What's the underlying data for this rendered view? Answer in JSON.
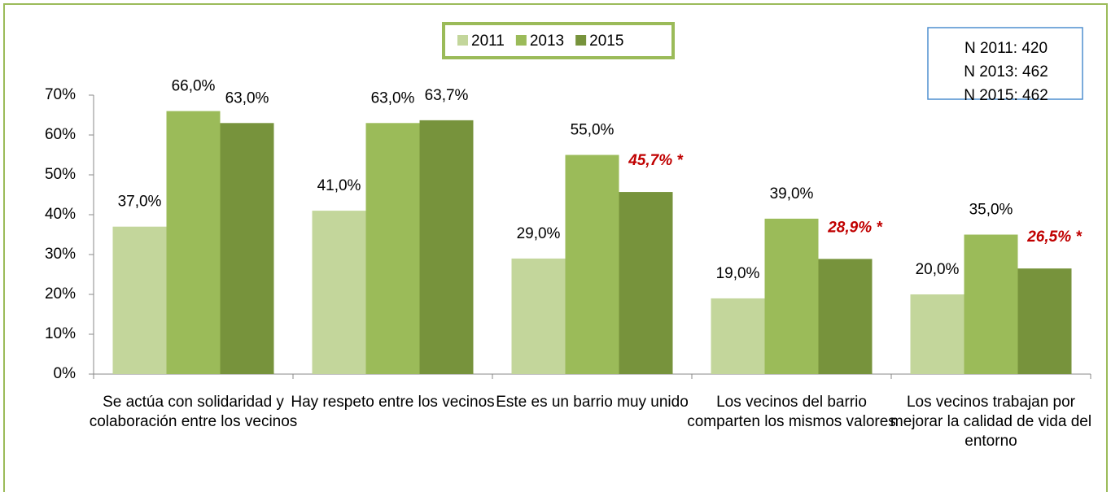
{
  "chart_data": {
    "type": "bar",
    "categories": [
      "Se actúa con solidaridad y colaboración entre los vecinos",
      "Hay respeto entre los vecinos",
      "Este es un barrio muy unido",
      "Los vecinos del barrio comparten los mismos valores",
      "Los vecinos trabajan por mejorar la calidad de vida del entorno"
    ],
    "series": [
      {
        "name": "2011",
        "color": "#c3d69b",
        "values": [
          37,
          41,
          29,
          19,
          20
        ],
        "value_labels": [
          "37,0%",
          "41,0%",
          "29,0%",
          "19,0%",
          "20,0%"
        ]
      },
      {
        "name": "2013",
        "color": "#9bbb59",
        "values": [
          66,
          63,
          55,
          39,
          35
        ],
        "value_labels": [
          "66,0%",
          "63,0%",
          "55,0%",
          "39,0%",
          "35,0%"
        ]
      },
      {
        "name": "2015",
        "color": "#77933c",
        "values": [
          63,
          63.7,
          45.7,
          28.9,
          26.5
        ],
        "value_labels": [
          "63,0%",
          "63,7%",
          "45,7% *",
          "28,9% *",
          "26,5% *"
        ],
        "highlight": [
          false,
          false,
          true,
          true,
          true
        ],
        "highlight_color": "#c00000"
      }
    ],
    "ylim": [
      0,
      70
    ],
    "yticks": [
      {
        "value": 0,
        "label": "0%"
      },
      {
        "value": 10,
        "label": "10%"
      },
      {
        "value": 20,
        "label": "20%"
      },
      {
        "value": 30,
        "label": "30%"
      },
      {
        "value": 40,
        "label": "40%"
      },
      {
        "value": 50,
        "label": "50%"
      },
      {
        "value": 60,
        "label": "60%"
      },
      {
        "value": 70,
        "label": "70%"
      }
    ],
    "grid": false,
    "legend": "top",
    "note": [
      "N 2011: 420",
      "N 2013: 462",
      "N 2015: 462"
    ]
  }
}
